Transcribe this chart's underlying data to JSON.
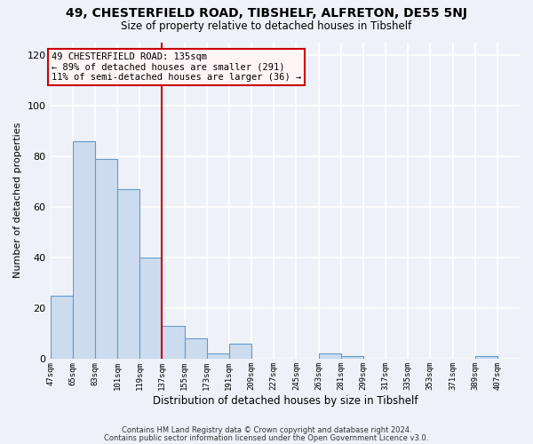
{
  "title1": "49, CHESTERFIELD ROAD, TIBSHELF, ALFRETON, DE55 5NJ",
  "title2": "Size of property relative to detached houses in Tibshelf",
  "xlabel": "Distribution of detached houses by size in Tibshelf",
  "ylabel": "Number of detached properties",
  "bar_left_edges": [
    47,
    65,
    83,
    101,
    119,
    137,
    155,
    173,
    191,
    209,
    227,
    245,
    263,
    281,
    299,
    317,
    335,
    353,
    371,
    389
  ],
  "bar_heights": [
    25,
    86,
    79,
    67,
    40,
    13,
    8,
    2,
    6,
    0,
    0,
    0,
    2,
    1,
    0,
    0,
    0,
    0,
    0,
    1
  ],
  "bin_width": 18,
  "bar_color": "#ccdcee",
  "bar_edge_color": "#6699cc",
  "vline_x": 137,
  "vline_color": "#cc0000",
  "annotation_box_facecolor": "#fff5f5",
  "annotation_box_edgecolor": "#cc0000",
  "annotation_line1": "49 CHESTERFIELD ROAD: 135sqm",
  "annotation_line2": "← 89% of detached houses are smaller (291)",
  "annotation_line3": "11% of semi-detached houses are larger (36) →",
  "xlim_left": 47,
  "xlim_right": 425,
  "ylim_top": 125,
  "yticks": [
    0,
    20,
    40,
    60,
    80,
    100,
    120
  ],
  "tick_labels": [
    "47sqm",
    "65sqm",
    "83sqm",
    "101sqm",
    "119sqm",
    "137sqm",
    "155sqm",
    "173sqm",
    "191sqm",
    "209sqm",
    "227sqm",
    "245sqm",
    "263sqm",
    "281sqm",
    "299sqm",
    "317sqm",
    "335sqm",
    "353sqm",
    "371sqm",
    "389sqm",
    "407sqm"
  ],
  "tick_positions": [
    47,
    65,
    83,
    101,
    119,
    137,
    155,
    173,
    191,
    209,
    227,
    245,
    263,
    281,
    299,
    317,
    335,
    353,
    371,
    389,
    407
  ],
  "footnote1": "Contains HM Land Registry data © Crown copyright and database right 2024.",
  "footnote2": "Contains public sector information licensed under the Open Government Licence v3.0.",
  "bg_color": "#eef2f8",
  "grid_color": "#ffffff"
}
